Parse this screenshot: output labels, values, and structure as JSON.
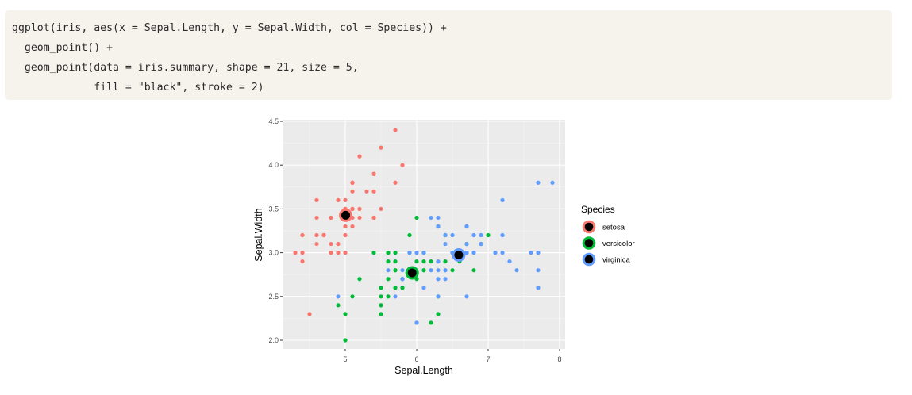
{
  "code": {
    "lines": [
      "ggplot(iris, aes(x = Sepal.Length, y = Sepal.Width, col = Species)) +",
      "  geom_point() +",
      "  geom_point(data = iris.summary, shape = 21, size = 5,",
      "             fill = \"black\", stroke = 2)"
    ]
  },
  "chart_data": {
    "type": "scatter",
    "title": "",
    "xlabel": "Sepal.Length",
    "ylabel": "Sepal.Width",
    "xlim": [
      4.3,
      7.9
    ],
    "ylim": [
      2.0,
      4.4
    ],
    "xticks": [
      5,
      6,
      7,
      8
    ],
    "yticks": [
      2.0,
      2.5,
      3.0,
      3.5,
      4.0,
      4.5
    ],
    "xtick_labels": [
      "5",
      "6",
      "7",
      "8"
    ],
    "ytick_labels": [
      "2.0",
      "2.5",
      "3.0",
      "3.5",
      "4.0",
      "4.5"
    ],
    "grid": true,
    "legend": {
      "title": "Species",
      "placement": "right"
    },
    "series": [
      {
        "name": "setosa",
        "color": "#F8766D",
        "x": [
          5.1,
          4.9,
          4.7,
          4.6,
          5.0,
          5.4,
          4.6,
          5.0,
          4.4,
          4.9,
          5.4,
          4.8,
          4.8,
          4.3,
          5.8,
          5.7,
          5.4,
          5.1,
          5.7,
          5.1,
          5.4,
          5.1,
          4.6,
          5.1,
          4.8,
          5.0,
          5.0,
          5.2,
          5.2,
          4.7,
          4.8,
          5.4,
          5.2,
          5.5,
          4.9,
          5.0,
          5.5,
          4.9,
          4.4,
          5.1,
          5.0,
          4.5,
          4.4,
          5.0,
          5.1,
          4.8,
          5.1,
          4.6,
          5.3,
          5.0
        ],
        "y": [
          3.5,
          3.0,
          3.2,
          3.1,
          3.6,
          3.9,
          3.4,
          3.4,
          2.9,
          3.1,
          3.7,
          3.4,
          3.0,
          3.0,
          4.0,
          4.4,
          3.9,
          3.5,
          3.8,
          3.8,
          3.4,
          3.7,
          3.6,
          3.3,
          3.4,
          3.0,
          3.4,
          3.5,
          3.4,
          3.2,
          3.1,
          3.4,
          4.1,
          4.2,
          3.1,
          3.2,
          3.5,
          3.6,
          3.0,
          3.4,
          3.5,
          2.3,
          3.2,
          3.5,
          3.8,
          3.0,
          3.8,
          3.2,
          3.7,
          3.3
        ]
      },
      {
        "name": "versicolor",
        "color": "#00BA38",
        "x": [
          7.0,
          6.4,
          6.9,
          5.5,
          6.5,
          5.7,
          6.3,
          4.9,
          6.6,
          5.2,
          5.0,
          5.9,
          6.0,
          6.1,
          5.6,
          6.7,
          5.6,
          5.8,
          6.2,
          5.6,
          5.9,
          6.1,
          6.3,
          6.1,
          6.4,
          6.6,
          6.8,
          6.7,
          6.0,
          5.7,
          5.5,
          5.5,
          5.8,
          6.0,
          5.4,
          6.0,
          6.7,
          6.3,
          5.6,
          5.5,
          5.5,
          6.1,
          5.8,
          5.0,
          5.6,
          5.7,
          5.7,
          6.2,
          5.1,
          5.7
        ],
        "y": [
          3.2,
          3.2,
          3.1,
          2.3,
          2.8,
          2.8,
          3.3,
          2.4,
          2.9,
          2.7,
          2.0,
          3.0,
          2.2,
          2.9,
          2.9,
          3.1,
          3.0,
          2.7,
          2.2,
          2.5,
          3.2,
          2.8,
          2.5,
          2.8,
          2.9,
          3.0,
          2.8,
          3.0,
          2.9,
          2.6,
          2.4,
          2.4,
          2.7,
          2.7,
          3.0,
          3.4,
          3.1,
          2.3,
          3.0,
          2.5,
          2.6,
          3.0,
          2.6,
          2.3,
          2.7,
          3.0,
          2.9,
          2.9,
          2.5,
          2.8
        ]
      },
      {
        "name": "virginica",
        "color": "#619CFF",
        "x": [
          6.3,
          5.8,
          7.1,
          6.3,
          6.5,
          7.6,
          4.9,
          7.3,
          6.7,
          7.2,
          6.5,
          6.4,
          6.8,
          5.7,
          5.8,
          6.4,
          6.5,
          7.7,
          7.7,
          6.0,
          6.9,
          5.6,
          7.7,
          6.3,
          6.7,
          7.2,
          6.2,
          6.1,
          6.4,
          7.2,
          7.4,
          7.9,
          6.4,
          6.3,
          6.1,
          7.7,
          6.3,
          6.4,
          6.0,
          6.9,
          6.7,
          6.9,
          5.8,
          6.8,
          6.7,
          6.7,
          6.3,
          6.5,
          6.2,
          5.9
        ],
        "y": [
          3.3,
          2.7,
          3.0,
          2.9,
          3.0,
          3.0,
          2.5,
          2.9,
          2.5,
          3.6,
          3.2,
          2.7,
          3.0,
          2.5,
          2.8,
          3.2,
          3.0,
          3.8,
          2.6,
          2.2,
          3.2,
          2.8,
          2.8,
          2.7,
          3.3,
          3.2,
          2.8,
          3.0,
          2.8,
          3.0,
          2.8,
          3.8,
          2.8,
          2.8,
          2.6,
          3.0,
          3.4,
          3.1,
          3.0,
          3.1,
          3.1,
          3.1,
          2.7,
          3.2,
          3.3,
          3.0,
          2.5,
          3.0,
          3.4,
          3.0
        ]
      }
    ],
    "summary_points": [
      {
        "name": "setosa",
        "color": "#F8766D",
        "x": 5.006,
        "y": 3.428
      },
      {
        "name": "versicolor",
        "color": "#00BA38",
        "x": 5.936,
        "y": 2.77
      },
      {
        "name": "virginica",
        "color": "#619CFF",
        "x": 6.588,
        "y": 2.974
      }
    ],
    "colors": {
      "panel": "#EBEBEB",
      "grid": "#FFFFFF",
      "summary_fill": "#000000"
    }
  }
}
